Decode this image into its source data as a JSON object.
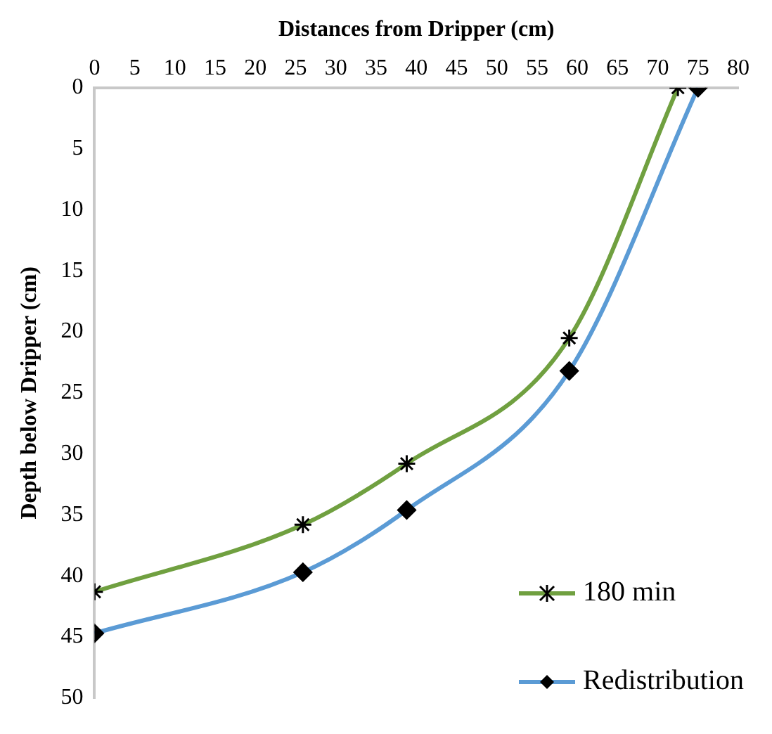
{
  "chart_data": {
    "type": "line",
    "xlabel": "Distances from Dripper (cm)",
    "ylabel": "Depth below Dripper (cm)",
    "xlim": [
      0,
      80
    ],
    "xticks": [
      0,
      5,
      10,
      15,
      20,
      25,
      30,
      35,
      40,
      45,
      50,
      55,
      60,
      65,
      70,
      75,
      80
    ],
    "ylim": [
      50,
      0
    ],
    "yticks": [
      0,
      5,
      10,
      15,
      20,
      25,
      30,
      35,
      40,
      45,
      50
    ],
    "grid": false,
    "legend": "bottom right",
    "series": [
      {
        "name": "180 min",
        "color": "#70a040",
        "marker": "cross",
        "x": [
          72.5,
          59,
          38.8,
          25.9,
          0
        ],
        "values": [
          0,
          20.5,
          30.8,
          35.8,
          41.3
        ]
      },
      {
        "name": "Redistribution",
        "color": "#5b9bd5",
        "marker": "diamond",
        "x": [
          75,
          59,
          38.8,
          25.9,
          0
        ],
        "values": [
          0,
          23.2,
          34.6,
          39.7,
          44.7
        ]
      }
    ]
  }
}
